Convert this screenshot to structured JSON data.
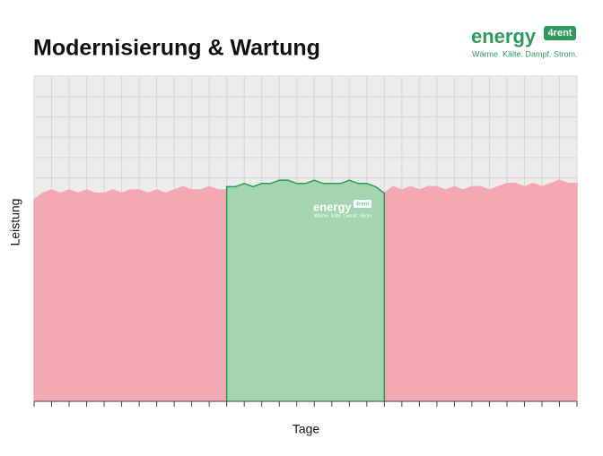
{
  "brand": {
    "name": "energy",
    "badge": "4rent",
    "tagline": "Wärme. Kälte. Dampf. Strom."
  },
  "chart_data": {
    "type": "area",
    "title": "Modernisierung & Wartung",
    "x_label": "Tage",
    "y_label": "Leistung",
    "x": [
      0,
      1,
      2,
      3,
      4,
      5,
      6,
      7,
      8,
      9,
      10,
      11,
      12,
      13,
      14,
      15,
      16,
      17,
      18,
      19,
      20,
      21,
      22,
      23,
      24,
      25,
      26,
      27,
      28,
      29,
      30,
      31,
      32,
      33,
      34,
      35,
      36,
      37,
      38,
      39,
      40,
      41,
      42,
      43,
      44,
      45,
      46,
      47,
      48,
      49,
      50,
      51,
      52,
      53,
      54,
      55,
      56,
      57,
      58,
      59,
      60,
      61,
      62
    ],
    "xlim": [
      0,
      62
    ],
    "ylim": [
      0,
      100
    ],
    "grid": true,
    "series": [
      {
        "color": "#f4a8b3",
        "values": [
          62,
          64,
          65,
          64,
          65,
          64,
          65,
          64,
          64,
          65,
          64,
          65,
          65,
          64,
          65,
          64,
          65,
          66,
          65,
          65,
          66,
          65,
          65,
          null,
          null,
          null,
          null,
          null,
          null,
          null,
          null,
          null,
          null,
          null,
          null,
          null,
          null,
          null,
          null,
          null,
          64,
          66,
          65,
          66,
          65,
          66,
          66,
          65,
          66,
          65,
          66,
          66,
          65,
          66,
          67,
          67,
          66,
          67,
          66,
          67,
          68,
          67,
          67
        ]
      },
      {
        "color": "#a2d5b0",
        "line_color": "#2e9a5a",
        "values": [
          null,
          null,
          null,
          null,
          null,
          null,
          null,
          null,
          null,
          null,
          null,
          null,
          null,
          null,
          null,
          null,
          null,
          null,
          null,
          null,
          null,
          null,
          66,
          66,
          67,
          66,
          67,
          67,
          68,
          68,
          67,
          67,
          68,
          67,
          67,
          67,
          68,
          67,
          67,
          66,
          64,
          null,
          null,
          null,
          null,
          null,
          null,
          null,
          null,
          null,
          null,
          null,
          null,
          null,
          null,
          null,
          null,
          null,
          null,
          null,
          null,
          null,
          null
        ]
      }
    ]
  }
}
